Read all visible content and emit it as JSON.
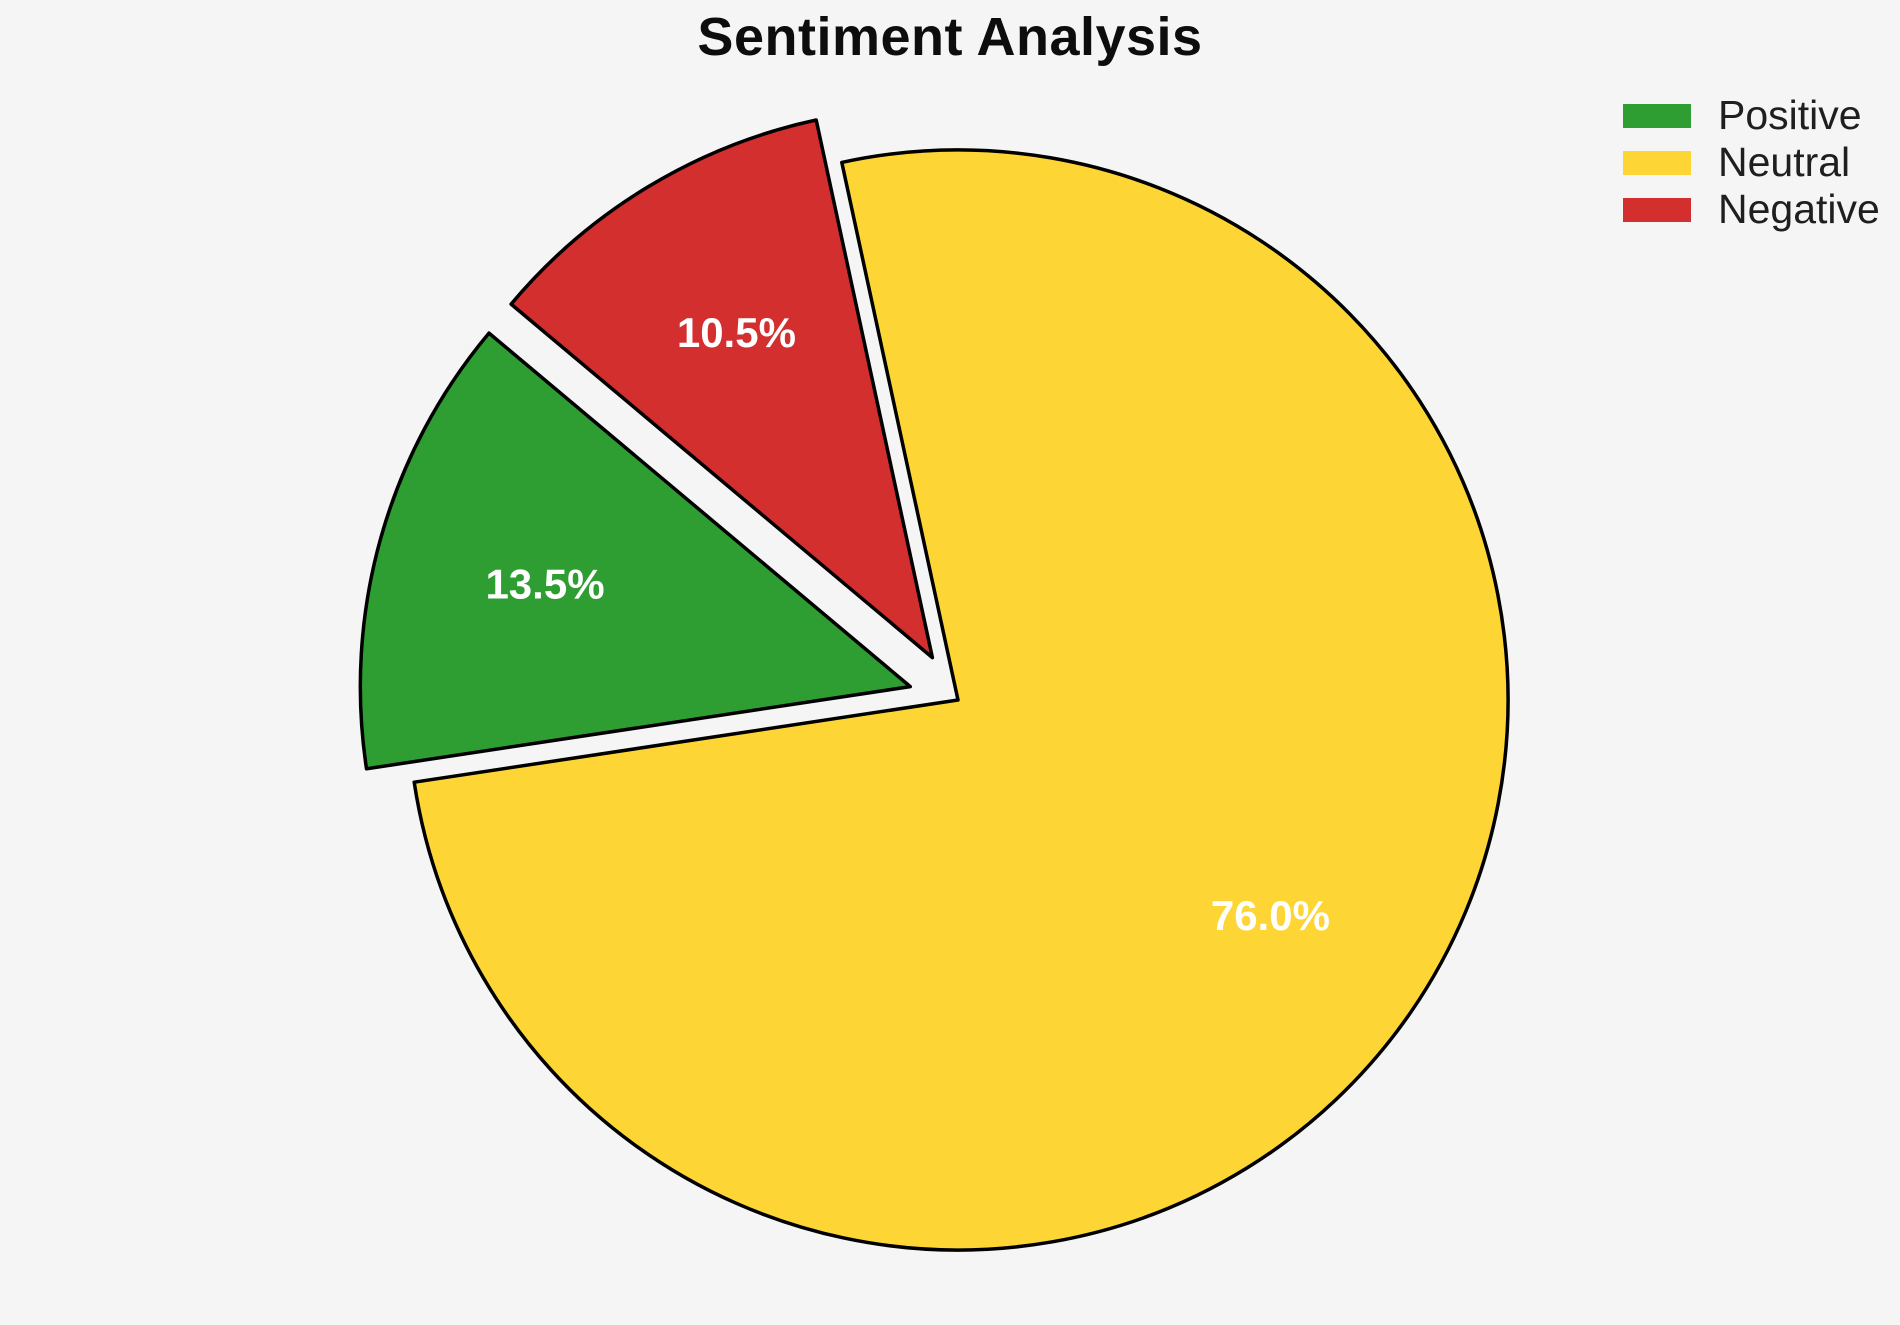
{
  "figure": {
    "background_color": "#f5f5f5"
  },
  "chart_data": {
    "type": "pie",
    "title": "Sentiment Analysis",
    "labels": [
      "Positive",
      "Neutral",
      "Negative"
    ],
    "values": [
      13.5,
      76.0,
      10.5
    ],
    "pct_labels": [
      "13.5%",
      "76.0%",
      "10.5%"
    ],
    "colors": [
      "#2f9e32",
      "#fdd635",
      "#d32f2f"
    ],
    "edge_color": "#000000",
    "pct_label_color": "#ffffff",
    "start_angle": 140,
    "counterclock": true,
    "explode": [
      0.09,
      0,
      0.09
    ],
    "pct_distance": 0.69,
    "legend_position": "upper right",
    "legend_entries": [
      "Positive",
      "Neutral",
      "Negative"
    ]
  }
}
